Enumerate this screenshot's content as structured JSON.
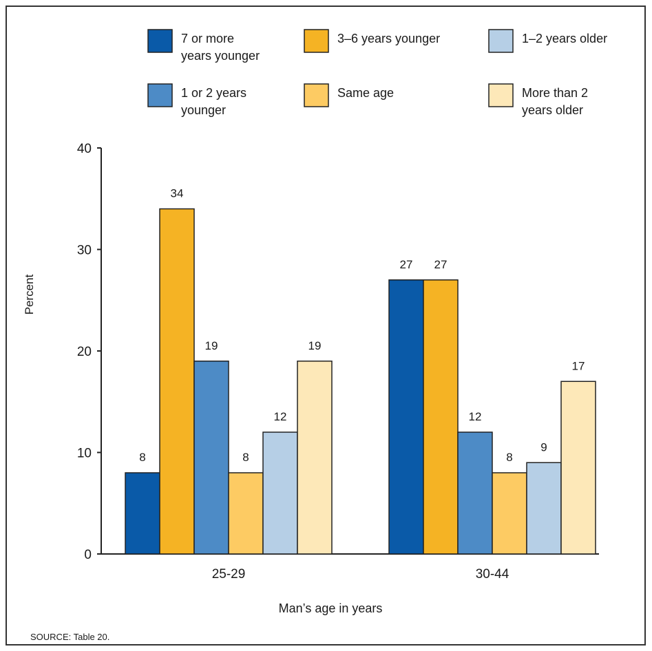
{
  "chart_data": {
    "type": "bar",
    "categories": [
      "25-29",
      "30-44"
    ],
    "series": [
      {
        "name": "7 or more years younger",
        "legend_lines": [
          "7 or more",
          "years younger"
        ],
        "color": "#0a5aa8",
        "values": [
          8,
          27
        ]
      },
      {
        "name": "3–6 years younger",
        "legend_lines": [
          "3–6  years younger"
        ],
        "color": "#f5b324",
        "values": [
          34,
          27
        ]
      },
      {
        "name": "1 or 2 years younger",
        "legend_lines": [
          "1 or 2  years",
          "younger"
        ],
        "color": "#4d8bc6",
        "values": [
          19,
          12
        ]
      },
      {
        "name": "Same age",
        "legend_lines": [
          "Same age"
        ],
        "color": "#fdcb63",
        "values": [
          8,
          8
        ]
      },
      {
        "name": "1–2 years older",
        "legend_lines": [
          "1–2  years older"
        ],
        "color": "#b6cfe6",
        "values": [
          12,
          9
        ]
      },
      {
        "name": "More than 2 years older",
        "legend_lines": [
          "More than 2",
          "years older"
        ],
        "color": "#fde8b8",
        "values": [
          19,
          17
        ]
      }
    ],
    "ylabel": "Percent",
    "xlabel": "Man’s age in years",
    "ylim": [
      0,
      40
    ],
    "yticks": [
      0,
      10,
      20,
      30,
      40
    ],
    "grid": false,
    "legend_position": "top"
  },
  "source": "SOURCE: Table 20."
}
